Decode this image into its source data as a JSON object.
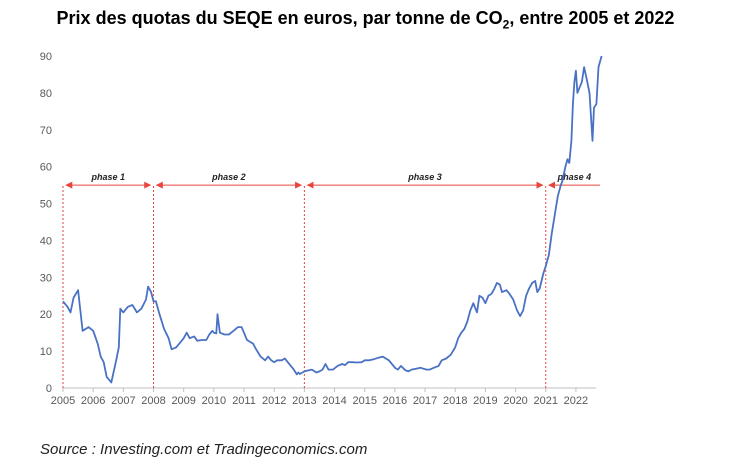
{
  "title": {
    "main": "Prix des quotas du SEQE en euros, par tonne de CO",
    "sub": "2",
    "tail": ", entre 2005 et 2022"
  },
  "source": "Source : Investing.com et Tradingeconomics.com",
  "chart_data": {
    "type": "line",
    "title": "Prix des quotas du SEQE en euros, par tonne de CO₂, entre 2005 et 2022",
    "xlabel": "",
    "ylabel": "",
    "xlim": [
      2005,
      2022.5
    ],
    "ylim": [
      0,
      90
    ],
    "x_ticks": [
      "2005",
      "2006",
      "2007",
      "2008",
      "2009",
      "2010",
      "2011",
      "2012",
      "2013",
      "2014",
      "2015",
      "2016",
      "2017",
      "2018",
      "2019",
      "2020",
      "2021",
      "2022"
    ],
    "y_ticks": [
      0,
      10,
      20,
      30,
      40,
      50,
      60,
      70,
      80,
      90
    ],
    "grid": false,
    "line_color": "#4a72c4",
    "annotation_color": "#e8453c",
    "phase_boundaries": [
      2005.0,
      2008.0,
      2013.0,
      2021.0
    ],
    "phases": [
      {
        "label": "phase 1",
        "start": 2005.0,
        "end": 2008.0
      },
      {
        "label": "phase 2",
        "start": 2008.0,
        "end": 2013.0
      },
      {
        "label": "phase 3",
        "start": 2013.0,
        "end": 2021.0
      },
      {
        "label": "phase 4",
        "start": 2021.0,
        "end": 2022.5
      }
    ],
    "series": [
      {
        "points": [
          [
            2005.0,
            23.5
          ],
          [
            2005.15,
            22
          ],
          [
            2005.25,
            20.5
          ],
          [
            2005.35,
            24.5
          ],
          [
            2005.5,
            26.5
          ],
          [
            2005.65,
            15.5
          ],
          [
            2005.85,
            16.5
          ],
          [
            2006.0,
            15.5
          ],
          [
            2006.15,
            12
          ],
          [
            2006.25,
            8.5
          ],
          [
            2006.35,
            7
          ],
          [
            2006.45,
            3
          ],
          [
            2006.55,
            2
          ],
          [
            2006.6,
            1.5
          ],
          [
            2006.75,
            7
          ],
          [
            2006.85,
            11
          ],
          [
            2006.9,
            21.5
          ],
          [
            2007.0,
            20.5
          ],
          [
            2007.15,
            22
          ],
          [
            2007.3,
            22.5
          ],
          [
            2007.45,
            20.5
          ],
          [
            2007.6,
            21.5
          ],
          [
            2007.75,
            24
          ],
          [
            2007.82,
            27.5
          ],
          [
            2007.92,
            26
          ],
          [
            2008.0,
            23.5
          ],
          [
            2008.08,
            23.5
          ],
          [
            2008.2,
            20
          ],
          [
            2008.35,
            16
          ],
          [
            2008.5,
            13.5
          ],
          [
            2008.6,
            10.5
          ],
          [
            2008.75,
            11
          ],
          [
            2008.9,
            12.5
          ],
          [
            2009.0,
            13.5
          ],
          [
            2009.1,
            15
          ],
          [
            2009.2,
            13.5
          ],
          [
            2009.35,
            14
          ],
          [
            2009.45,
            12.8
          ],
          [
            2009.6,
            13
          ],
          [
            2009.75,
            13
          ],
          [
            2009.85,
            14.5
          ],
          [
            2009.95,
            15.5
          ],
          [
            2010.0,
            15
          ],
          [
            2010.08,
            14.8
          ],
          [
            2010.12,
            20
          ],
          [
            2010.2,
            15
          ],
          [
            2010.35,
            14.5
          ],
          [
            2010.5,
            14.5
          ],
          [
            2010.65,
            15.5
          ],
          [
            2010.8,
            16.5
          ],
          [
            2010.92,
            16.5
          ],
          [
            2011.0,
            15
          ],
          [
            2011.1,
            13
          ],
          [
            2011.2,
            12.5
          ],
          [
            2011.3,
            12
          ],
          [
            2011.4,
            10.5
          ],
          [
            2011.55,
            8.5
          ],
          [
            2011.7,
            7.5
          ],
          [
            2011.8,
            8.5
          ],
          [
            2011.9,
            7.5
          ],
          [
            2012.0,
            7
          ],
          [
            2012.1,
            7.5
          ],
          [
            2012.25,
            7.5
          ],
          [
            2012.35,
            8
          ],
          [
            2012.45,
            7
          ],
          [
            2012.55,
            6
          ],
          [
            2012.65,
            5
          ],
          [
            2012.75,
            3.7
          ],
          [
            2012.8,
            4.2
          ],
          [
            2012.85,
            3.8
          ],
          [
            2013.0,
            4.5
          ],
          [
            2013.15,
            4.8
          ],
          [
            2013.25,
            5
          ],
          [
            2013.4,
            4.2
          ],
          [
            2013.5,
            4.5
          ],
          [
            2013.6,
            5
          ],
          [
            2013.7,
            6.5
          ],
          [
            2013.8,
            5
          ],
          [
            2013.95,
            5
          ],
          [
            2014.1,
            6
          ],
          [
            2014.25,
            6.5
          ],
          [
            2014.35,
            6.2
          ],
          [
            2014.45,
            7
          ],
          [
            2014.6,
            7
          ],
          [
            2014.75,
            6.9
          ],
          [
            2014.9,
            7
          ],
          [
            2015.0,
            7.5
          ],
          [
            2015.15,
            7.5
          ],
          [
            2015.3,
            7.8
          ],
          [
            2015.45,
            8.2
          ],
          [
            2015.6,
            8.5
          ],
          [
            2015.7,
            8
          ],
          [
            2015.8,
            7.5
          ],
          [
            2015.9,
            6.5
          ],
          [
            2016.0,
            5.5
          ],
          [
            2016.1,
            5
          ],
          [
            2016.2,
            6
          ],
          [
            2016.35,
            4.8
          ],
          [
            2016.45,
            4.5
          ],
          [
            2016.55,
            5
          ],
          [
            2016.7,
            5.2
          ],
          [
            2016.85,
            5.5
          ],
          [
            2016.95,
            5.2
          ],
          [
            2017.05,
            5
          ],
          [
            2017.15,
            5
          ],
          [
            2017.3,
            5.5
          ],
          [
            2017.45,
            6
          ],
          [
            2017.55,
            7.5
          ],
          [
            2017.7,
            8
          ],
          [
            2017.85,
            9
          ],
          [
            2018.0,
            11
          ],
          [
            2018.1,
            13.5
          ],
          [
            2018.2,
            15
          ],
          [
            2018.3,
            16
          ],
          [
            2018.4,
            18
          ],
          [
            2018.5,
            21
          ],
          [
            2018.6,
            23
          ],
          [
            2018.72,
            20.5
          ],
          [
            2018.8,
            25
          ],
          [
            2018.9,
            24.5
          ],
          [
            2019.0,
            23
          ],
          [
            2019.1,
            25
          ],
          [
            2019.2,
            25.5
          ],
          [
            2019.3,
            27
          ],
          [
            2019.38,
            28.5
          ],
          [
            2019.48,
            28
          ],
          [
            2019.55,
            26
          ],
          [
            2019.7,
            26.5
          ],
          [
            2019.8,
            25.5
          ],
          [
            2019.92,
            24
          ],
          [
            2020.05,
            21
          ],
          [
            2020.15,
            19.5
          ],
          [
            2020.25,
            21
          ],
          [
            2020.35,
            25
          ],
          [
            2020.45,
            27
          ],
          [
            2020.55,
            28.5
          ],
          [
            2020.65,
            29
          ],
          [
            2020.72,
            26
          ],
          [
            2020.8,
            27
          ],
          [
            2020.92,
            31
          ],
          [
            2021.0,
            33
          ],
          [
            2021.1,
            36
          ],
          [
            2021.2,
            42
          ],
          [
            2021.3,
            47
          ],
          [
            2021.4,
            52
          ],
          [
            2021.5,
            55
          ],
          [
            2021.55,
            56
          ],
          [
            2021.65,
            60
          ],
          [
            2021.72,
            62
          ],
          [
            2021.78,
            61
          ],
          [
            2021.85,
            67
          ],
          [
            2021.9,
            77
          ],
          [
            2021.95,
            83
          ],
          [
            2022.0,
            86
          ],
          [
            2022.05,
            80
          ],
          [
            2022.1,
            81
          ],
          [
            2022.2,
            83
          ],
          [
            2022.27,
            87
          ],
          [
            2022.35,
            84
          ],
          [
            2022.45,
            80
          ],
          [
            2022.55,
            67
          ],
          [
            2022.6,
            76
          ],
          [
            2022.68,
            77
          ],
          [
            2022.75,
            87
          ],
          [
            2022.85,
            90
          ]
        ]
      }
    ]
  }
}
